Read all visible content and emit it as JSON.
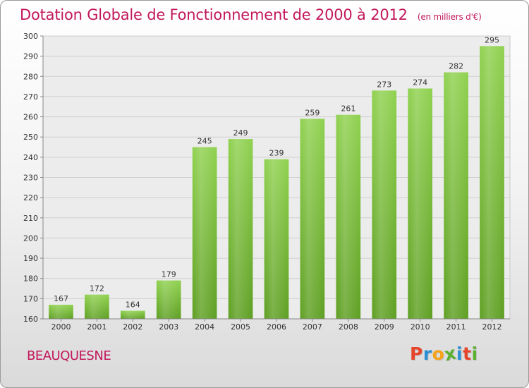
{
  "chart_data": {
    "type": "bar",
    "title": "Dotation Globale de Fonctionnement de 2000 à 2012",
    "unit": "(en milliers d'€)",
    "categories": [
      "2000",
      "2001",
      "2002",
      "2003",
      "2004",
      "2005",
      "2006",
      "2007",
      "2008",
      "2009",
      "2010",
      "2011",
      "2012"
    ],
    "values": [
      167,
      172,
      164,
      179,
      245,
      249,
      239,
      259,
      261,
      273,
      274,
      282,
      295
    ],
    "ylim": [
      160,
      300
    ],
    "yticks": [
      160,
      170,
      180,
      190,
      200,
      210,
      220,
      230,
      240,
      250,
      260,
      270,
      280,
      290,
      300
    ],
    "grid": true,
    "xlabel": "",
    "ylabel": "",
    "bar_color": "#7cc142"
  },
  "footer": {
    "commune": "BEAUQUESNE"
  },
  "logo": {
    "letters": [
      "P",
      "r",
      "o",
      "x",
      "i",
      "t",
      "i"
    ],
    "colors": [
      "#e5462b",
      "#2b8fd6",
      "#f6a21a",
      "#5cb030",
      "#2b8fd6",
      "#e5462b",
      "#5cb030"
    ]
  },
  "colors": {
    "title": "#c2185b",
    "bar": "#7cc142",
    "bar_dark": "#5a9a24"
  }
}
